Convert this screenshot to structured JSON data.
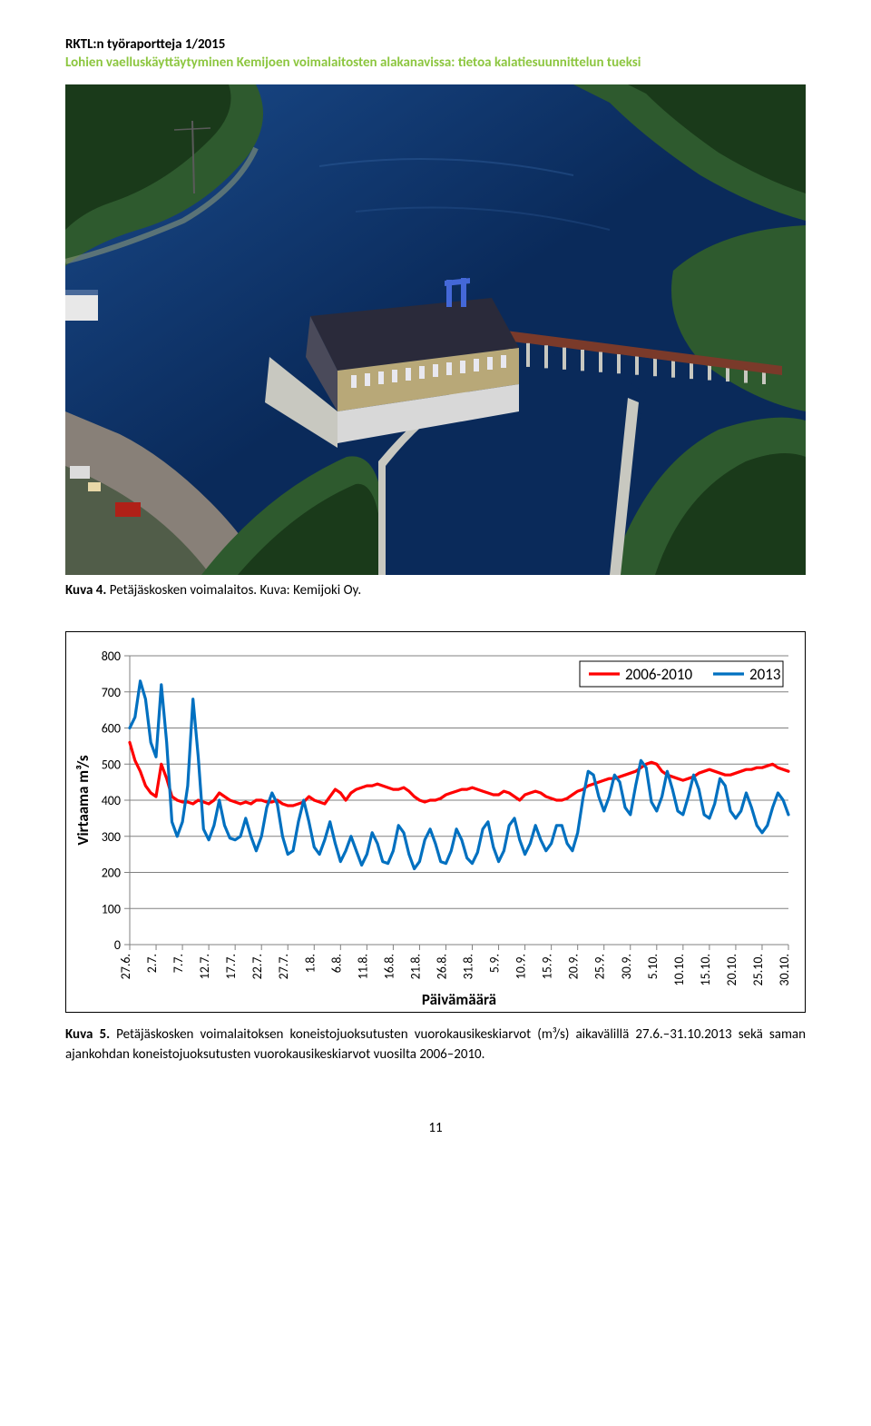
{
  "header": {
    "line1": "RKTL:n työraportteja 1/2015",
    "line2": "Lohien vaelluskäyttäytyminen Kemijoen voimalaitosten alakanavissa: tietoa kalatiesuunnittelun tueksi",
    "line2_color": "#8cc63f"
  },
  "photo": {
    "colors": {
      "water_deep": "#0a2a5a",
      "water_mid": "#1a4a8a",
      "water_light": "#3a6aaa",
      "forest_dark": "#1a3a1a",
      "forest_mid": "#2e5a2e",
      "forest_light": "#4a7a3a",
      "building_wall": "#b8a878",
      "building_dark": "#4a4a5a",
      "building_roof": "#2a2a3a",
      "bridge": "#7a3a2a",
      "concrete": "#c8c8c0",
      "crane": "#4468d8",
      "shore": "#8a9878",
      "gravel": "#888078"
    }
  },
  "caption1": {
    "bold": "Kuva 4.",
    "rest": " Petäjäskosken voimalaitos. Kuva: Kemijoki Oy."
  },
  "chart": {
    "type": "line",
    "ylabel": "Virtaama m³/s",
    "xlabel": "Päivämäärä",
    "ylim": [
      0,
      800
    ],
    "ytick_step": 100,
    "yticks": [
      0,
      100,
      200,
      300,
      400,
      500,
      600,
      700,
      800
    ],
    "xticks": [
      "27.6.",
      "2.7.",
      "7.7.",
      "12.7.",
      "17.7.",
      "22.7.",
      "27.7.",
      "1.8.",
      "6.8.",
      "11.8.",
      "16.8.",
      "21.8.",
      "26.8.",
      "31.8.",
      "5.9.",
      "10.9.",
      "15.9.",
      "20.9.",
      "25.9.",
      "30.9.",
      "5.10.",
      "10.10.",
      "15.10.",
      "20.10.",
      "25.10.",
      "30.10."
    ],
    "grid_color": "#808080",
    "axis_color": "#808080",
    "tick_fontsize": 14,
    "label_fontsize": 17,
    "label_fontweight": "700",
    "background_color": "#ffffff",
    "plot_border_color": "#000000",
    "line_width": 3.2,
    "legend": {
      "position": "top-right",
      "items": [
        {
          "label": "2006-2010",
          "color": "#ff0000"
        },
        {
          "label": "2013",
          "color": "#0070c0"
        }
      ],
      "border_color": "#000000",
      "fontsize": 17
    },
    "series": [
      {
        "name": "2006-2010",
        "color": "#ff0000",
        "y": [
          560,
          510,
          480,
          440,
          420,
          410,
          500,
          460,
          410,
          400,
          395,
          395,
          390,
          400,
          395,
          390,
          400,
          420,
          410,
          400,
          395,
          390,
          395,
          390,
          400,
          400,
          395,
          395,
          400,
          390,
          385,
          385,
          390,
          395,
          410,
          400,
          395,
          390,
          410,
          430,
          420,
          400,
          420,
          430,
          435,
          440,
          440,
          445,
          440,
          435,
          430,
          430,
          435,
          425,
          410,
          400,
          395,
          400,
          400,
          405,
          415,
          420,
          425,
          430,
          430,
          435,
          430,
          425,
          420,
          415,
          415,
          425,
          420,
          410,
          400,
          415,
          420,
          425,
          420,
          410,
          405,
          400,
          400,
          405,
          415,
          425,
          430,
          440,
          445,
          450,
          455,
          460,
          460,
          465,
          470,
          475,
          480,
          490,
          500,
          505,
          500,
          480,
          470,
          465,
          460,
          455,
          460,
          465,
          475,
          480,
          485,
          480,
          475,
          470,
          470,
          475,
          480,
          485,
          485,
          490,
          490,
          495,
          500,
          490,
          485,
          480
        ]
      },
      {
        "name": "2013",
        "color": "#0070c0",
        "y": [
          600,
          630,
          730,
          680,
          560,
          520,
          720,
          560,
          340,
          300,
          340,
          440,
          680,
          520,
          320,
          290,
          330,
          400,
          330,
          295,
          290,
          300,
          350,
          300,
          260,
          300,
          380,
          420,
          390,
          300,
          250,
          260,
          340,
          400,
          340,
          270,
          250,
          290,
          340,
          280,
          230,
          260,
          300,
          260,
          220,
          250,
          310,
          280,
          230,
          225,
          260,
          330,
          310,
          250,
          210,
          230,
          290,
          320,
          280,
          230,
          225,
          260,
          320,
          290,
          240,
          225,
          255,
          320,
          340,
          270,
          230,
          260,
          330,
          350,
          290,
          250,
          280,
          330,
          290,
          260,
          280,
          330,
          330,
          280,
          260,
          310,
          405,
          480,
          470,
          410,
          370,
          410,
          470,
          450,
          380,
          360,
          440,
          510,
          490,
          395,
          370,
          410,
          480,
          430,
          370,
          360,
          410,
          470,
          430,
          360,
          350,
          390,
          460,
          440,
          370,
          350,
          370,
          420,
          380,
          330,
          310,
          330,
          380,
          420,
          400,
          360
        ]
      }
    ]
  },
  "caption2": {
    "bold": "Kuva 5.",
    "rest": " Petäjäskosken voimalaitoksen koneistojuoksutusten vuorokausikeskiarvot (m³/s) aikavälillä 27.6.–31.10.2013 sekä saman ajankohdan koneistojuoksutusten vuorokausikeskiarvot vuosilta 2006–2010."
  },
  "page_number": "11"
}
